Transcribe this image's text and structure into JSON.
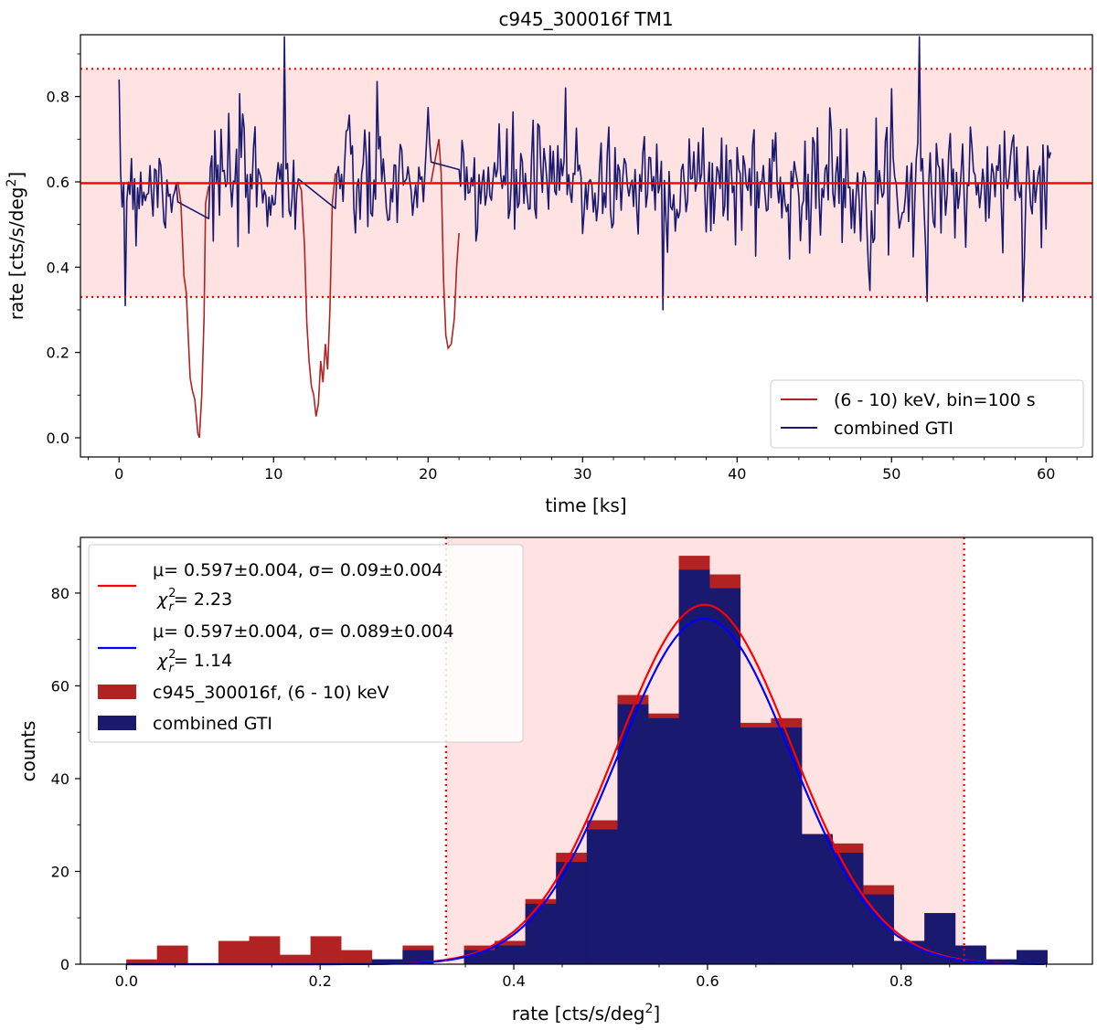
{
  "chart_data": [
    {
      "type": "line",
      "title": "c945_300016f TM1",
      "xlabel": "time [ks]",
      "ylabel": "rate [cts/s/deg²]",
      "ylabel_main": "rate [cts/s/deg",
      "ylabel_sup": "2",
      "ylabel_end": "]",
      "xlim": [
        -2.5,
        63.0
      ],
      "ylim": [
        -0.045,
        0.945
      ],
      "xticks": [
        0,
        10,
        20,
        30,
        40,
        50,
        60
      ],
      "yticks": [
        0.0,
        0.2,
        0.4,
        0.6,
        0.8
      ],
      "mean_line": 0.597,
      "band": [
        0.33,
        0.865
      ],
      "series": [
        {
          "name": "(6 - 10) keV, bin=100 s",
          "color": "#b22222",
          "gaps": [
            [
              3.8,
              0.6
            ],
            [
              4.0,
              0.55
            ],
            [
              4.2,
              0.38
            ],
            [
              4.35,
              0.34
            ],
            [
              4.5,
              0.22
            ],
            [
              4.6,
              0.14
            ],
            [
              4.75,
              0.11
            ],
            [
              4.9,
              0.09
            ],
            [
              5.0,
              0.05
            ],
            [
              5.1,
              0.01
            ],
            [
              5.2,
              0.0
            ],
            [
              5.35,
              0.1
            ],
            [
              5.5,
              0.28
            ],
            [
              5.6,
              0.55
            ],
            [
              5.8,
              0.59
            ],
            [
              11.6,
              0.6
            ],
            [
              11.8,
              0.58
            ],
            [
              12.0,
              0.45
            ],
            [
              12.15,
              0.27
            ],
            [
              12.3,
              0.18
            ],
            [
              12.45,
              0.12
            ],
            [
              12.6,
              0.1
            ],
            [
              12.75,
              0.05
            ],
            [
              12.9,
              0.08
            ],
            [
              13.05,
              0.18
            ],
            [
              13.2,
              0.13
            ],
            [
              13.35,
              0.22
            ],
            [
              13.5,
              0.16
            ],
            [
              13.65,
              0.3
            ],
            [
              13.8,
              0.55
            ],
            [
              14.0,
              0.62
            ],
            [
              20.2,
              0.6
            ],
            [
              20.5,
              0.66
            ],
            [
              20.7,
              0.7
            ],
            [
              20.85,
              0.62
            ],
            [
              21.0,
              0.37
            ],
            [
              21.15,
              0.24
            ],
            [
              21.3,
              0.21
            ],
            [
              21.5,
              0.22
            ],
            [
              21.7,
              0.28
            ],
            [
              21.85,
              0.4
            ],
            [
              22.0,
              0.48
            ]
          ]
        },
        {
          "name": "combined GTI",
          "color": "#191970",
          "segments": [
            [
              0.0,
              3.8
            ],
            [
              5.8,
              11.6
            ],
            [
              14.0,
              20.2
            ],
            [
              22.0,
              60.3
            ]
          ],
          "features": [
            [
              0.4,
              0.31
            ],
            [
              10.7,
              0.94
            ],
            [
              28.9,
              0.82
            ],
            [
              35.2,
              0.3
            ],
            [
              51.8,
              0.94
            ],
            [
              52.3,
              0.32
            ]
          ],
          "mean": 0.597,
          "sigma": 0.09,
          "seed": 7
        }
      ]
    },
    {
      "type": "bar",
      "xlabel": "rate [cts/s/deg²]",
      "xlabel_main": "rate [cts/s/deg",
      "xlabel_sup": "2",
      "xlabel_end": "]",
      "ylabel": "counts",
      "xlim": [
        -0.0475,
        0.9975
      ],
      "ylim": [
        0,
        92
      ],
      "xticks": [
        0.0,
        0.2,
        0.4,
        0.6,
        0.8
      ],
      "yticks": [
        0,
        20,
        40,
        60,
        80
      ],
      "band": [
        0.33,
        0.865
      ],
      "bin_edges": [
        0.0,
        0.0317,
        0.0634,
        0.0951,
        0.1268,
        0.1585,
        0.1902,
        0.2219,
        0.2536,
        0.2853,
        0.317,
        0.3487,
        0.3804,
        0.4121,
        0.4438,
        0.4755,
        0.5072,
        0.5389,
        0.5706,
        0.6023,
        0.634,
        0.6657,
        0.6974,
        0.7291,
        0.7608,
        0.7925,
        0.8242,
        0.8559,
        0.8876,
        0.9193,
        0.951
      ],
      "series": [
        {
          "name": "c945_300016f, (6 - 10) keV",
          "color": "#b22222",
          "values": [
            1,
            4,
            0,
            5,
            6,
            2,
            6,
            3,
            1,
            4,
            0,
            4,
            5,
            14,
            24,
            31,
            58,
            54,
            88,
            84,
            52,
            53,
            28,
            26,
            17,
            5,
            11,
            4,
            1,
            3
          ]
        },
        {
          "name": "combined GTI",
          "color": "#191970",
          "values": [
            0,
            0,
            0,
            0,
            0,
            0,
            0,
            0,
            1,
            3,
            0,
            3,
            4,
            13,
            22,
            29,
            56,
            53,
            85,
            81,
            51,
            51,
            28,
            24,
            15,
            5,
            11,
            4,
            1,
            3
          ]
        }
      ],
      "fits": [
        {
          "color": "#ff0000",
          "mu": 0.597,
          "sigma": 0.09,
          "amplitude": 77.5,
          "label_line1": "μ= 0.597±0.004, σ= 0.09±0.004",
          "label_chi": "χ",
          "label_chi_sup": "2",
          "label_chi_sub": "r",
          "label_chi_val": "= 2.23"
        },
        {
          "color": "#0000ff",
          "mu": 0.597,
          "sigma": 0.089,
          "amplitude": 74.5,
          "label_line1": "μ= 0.597±0.004, σ= 0.089±0.004",
          "label_chi": "χ",
          "label_chi_sup": "2",
          "label_chi_sub": "r",
          "label_chi_val": "= 1.14"
        }
      ]
    }
  ]
}
